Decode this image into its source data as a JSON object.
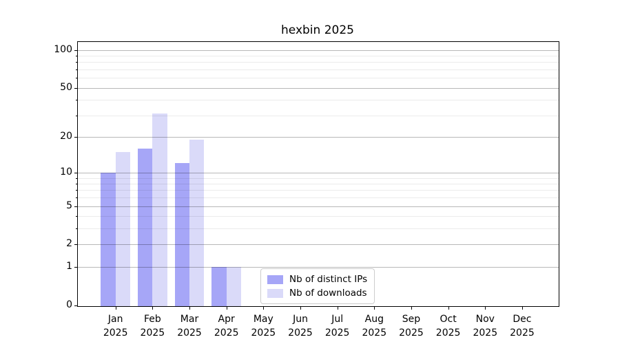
{
  "title": "hexbin 2025",
  "chart_data": {
    "type": "bar",
    "title": "hexbin 2025",
    "xlabel": "",
    "ylabel": "",
    "x_tick_year": "2025",
    "categories": [
      "Jan",
      "Feb",
      "Mar",
      "Apr",
      "May",
      "Jun",
      "Jul",
      "Aug",
      "Sep",
      "Oct",
      "Nov",
      "Dec"
    ],
    "series": [
      {
        "name": "Nb of distinct IPs",
        "color": "#a6a6f7",
        "values": [
          10,
          16,
          12,
          1,
          0,
          0,
          0,
          0,
          0,
          0,
          0,
          0
        ]
      },
      {
        "name": "Nb of downloads",
        "color": "#dadaf9",
        "values": [
          15,
          31,
          19,
          1,
          0,
          0,
          0,
          0,
          0,
          0,
          0,
          0
        ]
      }
    ],
    "y_scale": "log10(1+v)",
    "ylim": [
      0,
      115
    ],
    "y_ticks": [
      100,
      50,
      20,
      10,
      5,
      2,
      1,
      0
    ],
    "y_minor_ticks": [
      3,
      4,
      6,
      7,
      8,
      9,
      30,
      40,
      60,
      70,
      80,
      90
    ],
    "grid": "horizontal, drawn over bars",
    "legend_position": "lower center"
  },
  "colors": {
    "background": "#ffffff",
    "spine": "#000000",
    "major_grid": "rgba(0,0,0,0.28)",
    "minor_grid": "rgba(0,0,0,0.08)"
  }
}
